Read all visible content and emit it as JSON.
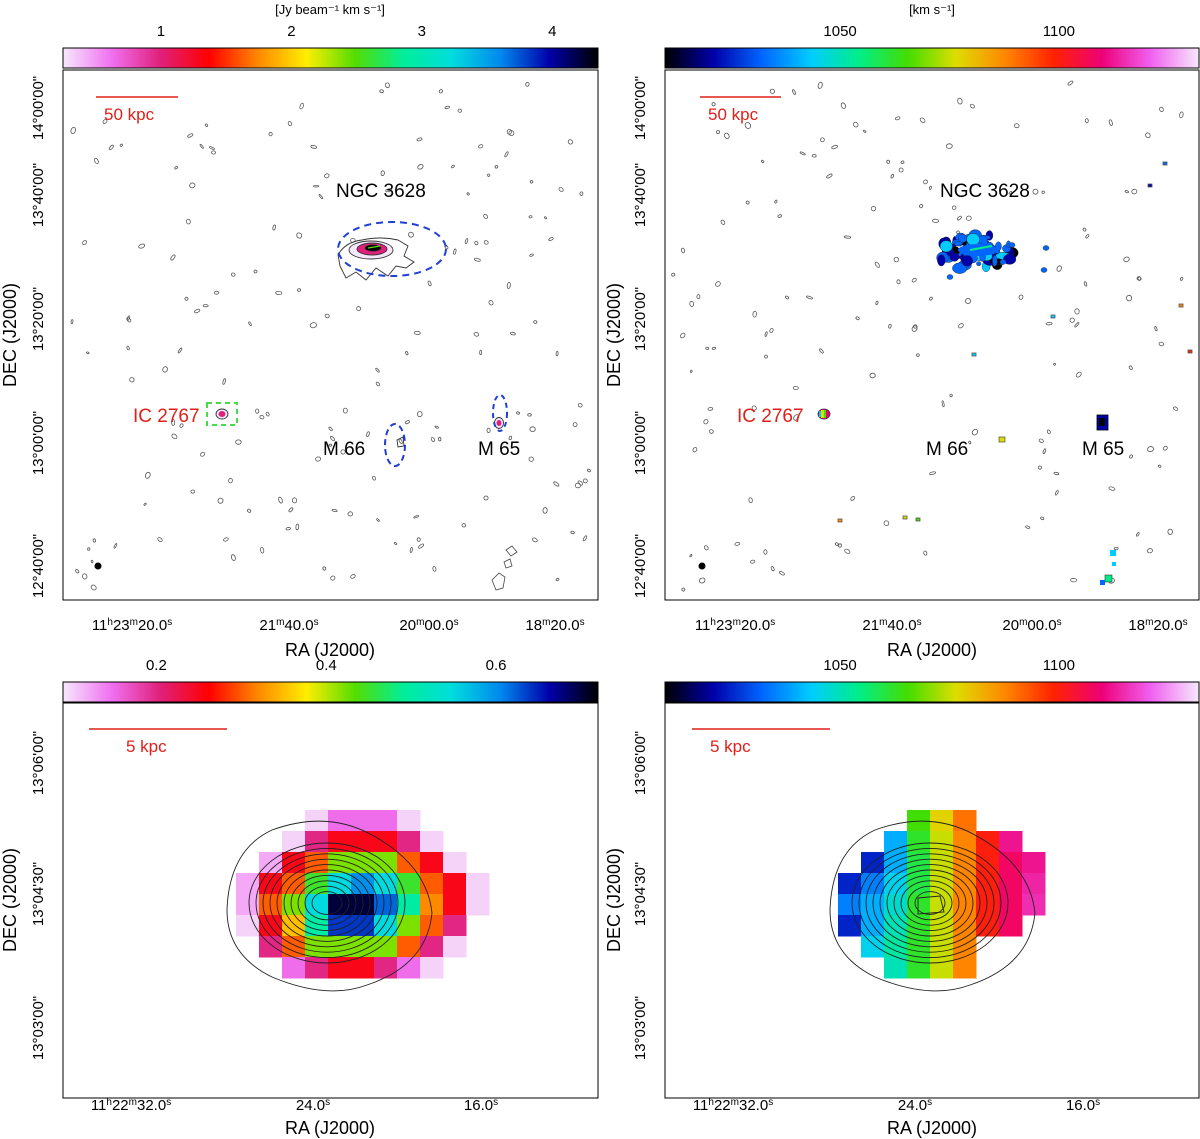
{
  "chart_data": [
    {
      "type": "heatmap",
      "panel": "top-left",
      "content": "HI moment-0 (integrated intensity) map of the Leo Triplet field",
      "colorbar": {
        "label": "[Jy beam⁻¹ km s⁻¹]",
        "ticks": [
          "1",
          "2",
          "3",
          "4"
        ],
        "tick_values": [
          1,
          2,
          3,
          4
        ],
        "range": [
          0.25,
          4.35
        ],
        "colors": [
          "#f6e8fb",
          "#f070f0",
          "#e0207a",
          "#ff0000",
          "#ff8800",
          "#ffee00",
          "#55dd00",
          "#00ee99",
          "#00dddd",
          "#0088ee",
          "#0000aa",
          "#000000"
        ]
      },
      "xlabel": "RA (J2000)",
      "ylabel": "DEC (J2000)",
      "x_ticks": [
        {
          "hh": "11",
          "h": "h",
          "mm": "23",
          "m": "m",
          "ss": "20.0",
          "s": "s"
        },
        {
          "mm": "21",
          "m": "m",
          "ss": "40.0",
          "s": "s"
        },
        {
          "mm": "20",
          "m": "m",
          "ss": "00.0",
          "s": "s"
        },
        {
          "mm": "18",
          "m": "m",
          "ss": "20.0",
          "s": "s"
        }
      ],
      "x_tick_seconds_of_ra": [
        40400,
        40300,
        40200,
        40100
      ],
      "x_range_seconds_of_ra": [
        40445,
        40066
      ],
      "y_ticks": [
        "12°40'00\"",
        "13°00'00\"",
        "13°20'00\"",
        "13°40'00\"",
        "14°00'00\""
      ],
      "y_tick_values_arcmin": [
        760,
        780,
        800,
        820,
        840
      ],
      "y_range_arcmin": [
        748,
        851
      ],
      "scale_bar": "50 kpc",
      "annotations": [
        {
          "text": "NGC 3628",
          "color": "#000000",
          "ra_s": 40235,
          "dec_arcmin": 830
        },
        {
          "text": "IC 2767",
          "color": "#e0201a",
          "ra_s": 40397,
          "dec_arcmin": 786
        },
        {
          "text": "M 66",
          "color": "#000000",
          "ra_s": 40237,
          "dec_arcmin": 779
        },
        {
          "text": "M 65",
          "color": "#000000",
          "ra_s": 40146,
          "dec_arcmin": 779
        }
      ],
      "regions": [
        {
          "shape": "ellipse",
          "style": "blue-dashed",
          "target": "NGC 3628",
          "ra_s": 40211,
          "dec_arcmin": 815.5
        },
        {
          "shape": "box",
          "style": "green-dashed",
          "target": "IC 2767",
          "ra_s": 40363,
          "dec_arcmin": 786
        },
        {
          "shape": "ellipse",
          "style": "blue-dashed",
          "target": "M 66",
          "ra_s": 40200,
          "dec_arcmin": 780
        },
        {
          "shape": "ellipse",
          "style": "blue-dashed",
          "target": "M 65",
          "ra_s": 40156,
          "dec_arcmin": 786
        }
      ]
    },
    {
      "type": "heatmap",
      "panel": "top-right",
      "content": "HI moment-1 (velocity field) map of the Leo Triplet field",
      "colorbar": {
        "label": "[km s⁻¹]",
        "ticks": [
          "1050",
          "1100"
        ],
        "tick_values": [
          1050,
          1100
        ],
        "range": [
          1010,
          1132
        ],
        "colors": [
          "#000000",
          "#0000aa",
          "#0066ff",
          "#00ccff",
          "#00ee88",
          "#44dd00",
          "#dddd00",
          "#ff8800",
          "#ff2200",
          "#ee0077",
          "#f060f0",
          "#f6e8fb"
        ]
      },
      "xlabel": "RA (J2000)",
      "ylabel": "DEC (J2000)",
      "scale_bar": "50 kpc",
      "annotations": [
        {
          "text": "NGC 3628",
          "color": "#000000"
        },
        {
          "text": "IC 2767",
          "color": "#e0201a"
        },
        {
          "text": "M 66",
          "color": "#000000"
        },
        {
          "text": "M 65",
          "color": "#000000"
        }
      ]
    },
    {
      "type": "heatmap",
      "panel": "bottom-left",
      "content": "HI moment-0 zoom on IC 2767",
      "colorbar": {
        "label": "",
        "ticks": [
          "0.2",
          "0.4",
          "0.6"
        ],
        "tick_values": [
          0.2,
          0.4,
          0.6
        ],
        "range": [
          0.09,
          0.72
        ],
        "colors": [
          "#f6e8fb",
          "#f070f0",
          "#e0207a",
          "#ff0000",
          "#ff8800",
          "#ffee00",
          "#55dd00",
          "#00ee99",
          "#00dddd",
          "#0088ee",
          "#0000aa",
          "#000000"
        ]
      },
      "xlabel": "RA (J2000)",
      "ylabel": "DEC (J2000)",
      "x_ticks": [
        {
          "hh": "11",
          "h": "h",
          "mm": "22",
          "m": "m",
          "ss": "32.0",
          "s": "s"
        },
        {
          "ss": "24.0",
          "s": "s"
        },
        {
          "ss": "16.0",
          "s": "s"
        }
      ],
      "x_tick_seconds_of_ra": [
        40952,
        40944,
        40936
      ],
      "x_range_seconds_of_ra": [
        40955.2,
        40929.6
      ],
      "y_ticks": [
        "13°03'00\"",
        "13°04'30\"",
        "13°06'00\""
      ],
      "y_tick_values_arcsec": [
        180,
        270,
        360
      ],
      "y_range_arcsec": [
        138,
        408
      ],
      "scale_bar": "5 kpc",
      "pixel_grid": {
        "ra_s_center0": 40947.25,
        "ra_s_step": -1.25,
        "dec_s_top": 320,
        "dec_s_step": -16
      },
      "values": [
        [
          null,
          null,
          null,
          0.1,
          0.15,
          0.15,
          0.15,
          0.1,
          null,
          null,
          null
        ],
        [
          null,
          null,
          0.1,
          0.2,
          0.25,
          0.25,
          0.25,
          0.2,
          0.1,
          null,
          null
        ],
        [
          null,
          0.12,
          0.25,
          0.3,
          0.42,
          0.42,
          0.42,
          0.3,
          0.25,
          0.1,
          null
        ],
        [
          0.12,
          0.25,
          0.3,
          0.45,
          0.55,
          0.6,
          0.55,
          0.45,
          0.3,
          0.25,
          0.1
        ],
        [
          0.12,
          0.3,
          0.42,
          0.55,
          0.7,
          0.7,
          0.62,
          0.5,
          0.32,
          0.25,
          0.1
        ],
        [
          0.1,
          0.25,
          0.35,
          0.5,
          0.64,
          0.64,
          0.55,
          0.42,
          0.3,
          0.2,
          null
        ],
        [
          null,
          0.2,
          0.3,
          0.42,
          0.42,
          0.42,
          0.42,
          0.3,
          0.2,
          0.1,
          null
        ],
        [
          null,
          null,
          0.15,
          0.2,
          0.25,
          0.25,
          0.2,
          0.15,
          0.1,
          null,
          null
        ]
      ]
    },
    {
      "type": "heatmap",
      "panel": "bottom-right",
      "content": "HI moment-1 zoom on IC 2767",
      "colorbar": {
        "label": "",
        "ticks": [
          "1050",
          "1100"
        ],
        "tick_values": [
          1050,
          1100
        ],
        "range": [
          1010,
          1132
        ],
        "colors": [
          "#000000",
          "#0000aa",
          "#0066ff",
          "#00ccff",
          "#00ee88",
          "#44dd00",
          "#dddd00",
          "#ff8800",
          "#ff2200",
          "#ee0077",
          "#f060f0",
          "#f6e8fb"
        ]
      },
      "xlabel": "RA (J2000)",
      "ylabel": "DEC (J2000)",
      "scale_bar": "5 kpc",
      "values": [
        [
          null,
          null,
          null,
          1065,
          1078,
          1090,
          null,
          null,
          null,
          null,
          null
        ],
        [
          null,
          null,
          1040,
          1062,
          1075,
          1088,
          1100,
          1112,
          null,
          null,
          null
        ],
        [
          null,
          1025,
          1040,
          1060,
          1075,
          1088,
          1100,
          1108,
          1112,
          null,
          null
        ],
        [
          1025,
          1035,
          1045,
          1060,
          1075,
          1088,
          1100,
          1108,
          1114,
          null,
          null
        ],
        [
          1035,
          1040,
          1048,
          1062,
          1075,
          1088,
          1100,
          1108,
          1115,
          null,
          null
        ],
        [
          1025,
          1040,
          1050,
          1062,
          1075,
          1088,
          1100,
          1108,
          null,
          null,
          null
        ],
        [
          null,
          1045,
          1052,
          1062,
          1075,
          1088,
          null,
          null,
          null,
          null,
          null
        ],
        [
          null,
          null,
          1050,
          1062,
          1075,
          1088,
          null,
          null,
          null,
          null,
          null
        ]
      ]
    }
  ]
}
